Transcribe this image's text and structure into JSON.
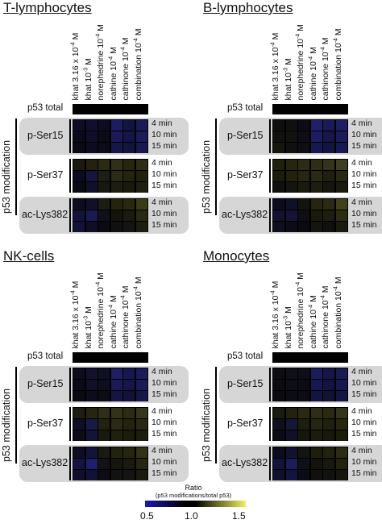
{
  "panels": [
    {
      "title": "T-lymphocytes",
      "heat": {
        "ser15": [
          [
            "#0d0d2a",
            "#10102e",
            "#0c0c22",
            "#1c1c60",
            "#141440",
            "#1a1a58"
          ],
          [
            "#0a0a1c",
            "#0e0e28",
            "#0a0a18",
            "#1a1a56",
            "#151546",
            "#1b1b5a"
          ],
          [
            "#0a0a16",
            "#0c0c20",
            "#0b0b1a",
            "#161648",
            "#141440",
            "#181850"
          ]
        ],
        "ser37": [
          [
            "#1a1a10",
            "#22220e",
            "#2a2a12",
            "#30301a",
            "#26260e",
            "#2e2e18"
          ],
          [
            "#0c0c20",
            "#16163c",
            "#1e1e14",
            "#2a2a16",
            "#24240e",
            "#22220c"
          ],
          [
            "#0a0a14",
            "#10102a",
            "#18180e",
            "#1e1e10",
            "#1a1a0c",
            "#202010"
          ]
        ],
        "lys382": [
          [
            "#0c0c20",
            "#10102a",
            "#1c1c12",
            "#24240e",
            "#28280e",
            "#3a3a18"
          ],
          [
            "#14143a",
            "#1a1a50",
            "#101018",
            "#14140c",
            "#1a1a10",
            "#2a2a14"
          ],
          [
            "#12123a",
            "#0e0e24",
            "#0a0a12",
            "#101010",
            "#141410",
            "#1e1e10"
          ]
        ]
      }
    },
    {
      "title": "B-lymphocytes",
      "heat": {
        "ser15": [
          [
            "#0e0e0e",
            "#101010",
            "#0c0c14",
            "#20206a",
            "#1a1a56",
            "#1e1e62"
          ],
          [
            "#12120c",
            "#121210",
            "#0e0e16",
            "#1c1c60",
            "#161648",
            "#1c1c5a"
          ],
          [
            "#16160c",
            "#101010",
            "#0e0e14",
            "#181850",
            "#141440",
            "#181852"
          ]
        ],
        "ser37": [
          [
            "#20200c",
            "#26260e",
            "#2c2c14",
            "#2e2e16",
            "#34341a",
            "#3e3e20"
          ],
          [
            "#1c1c0c",
            "#22220c",
            "#262612",
            "#2a2a14",
            "#20200e",
            "#2a2a12"
          ],
          [
            "#10100c",
            "#141410",
            "#1a1a0e",
            "#1e1e10",
            "#16160c",
            "#1a1a0e"
          ]
        ],
        "lys382": [
          [
            "#0c0c20",
            "#101028",
            "#14140e",
            "#26260e",
            "#2a2a12",
            "#40401c"
          ],
          [
            "#12122e",
            "#141436",
            "#0e0e14",
            "#1a1a0c",
            "#1e1e10",
            "#2c2c14"
          ],
          [
            "#0e0e1e",
            "#0c0c18",
            "#0a0a10",
            "#141410",
            "#10100e",
            "#1a1a10"
          ]
        ]
      }
    },
    {
      "title": "NK-cells",
      "heat": {
        "ser15": [
          [
            "#0c0c1c",
            "#12122e",
            "#101024",
            "#1e1e60",
            "#181850",
            "#1c1c5c"
          ],
          [
            "#0a0a18",
            "#101028",
            "#0e0e1e",
            "#1a1a56",
            "#161648",
            "#1a1a56"
          ],
          [
            "#0a0a12",
            "#0c0c1c",
            "#0c0c16",
            "#151544",
            "#121238",
            "#16164a"
          ]
        ],
        "ser37": [
          [
            "#1e1e10",
            "#26260e",
            "#2e2e16",
            "#32321a",
            "#2c2c14",
            "#363618"
          ],
          [
            "#0e0e24",
            "#1a1a48",
            "#222212",
            "#2a2a16",
            "#24240e",
            "#2a2a12"
          ],
          [
            "#0c0c18",
            "#141436",
            "#1a1a0e",
            "#20200e",
            "#1c1c0c",
            "#1e1e0e"
          ]
        ],
        "lys382": [
          [
            "#0e0e22",
            "#14143a",
            "#1a1a10",
            "#22220e",
            "#26260e",
            "#323216"
          ],
          [
            "#141440",
            "#20206a",
            "#121218",
            "#16160c",
            "#1a1a10",
            "#262612"
          ],
          [
            "#10102e",
            "#121234",
            "#0c0c12",
            "#121210",
            "#141410",
            "#1a1a0e"
          ]
        ]
      }
    },
    {
      "title": "Monocytes",
      "heat": {
        "ser15": [
          [
            "#0e0e12",
            "#10101a",
            "#0e0e16",
            "#1c1c5a",
            "#161648",
            "#1a1a52"
          ],
          [
            "#0c0c12",
            "#0e0e18",
            "#0c0c14",
            "#181850",
            "#141440",
            "#18184e"
          ],
          [
            "#0c0c10",
            "#0c0c14",
            "#0c0c12",
            "#141440",
            "#121234",
            "#151544"
          ]
        ],
        "ser37": [
          [
            "#1c1c0e",
            "#22220e",
            "#2a2a12",
            "#2e2e16",
            "#2a2a12",
            "#34341a"
          ],
          [
            "#10101c",
            "#161636",
            "#1e1e10",
            "#262612",
            "#20200e",
            "#26260e"
          ],
          [
            "#0c0c14",
            "#10102a",
            "#16160c",
            "#1c1c0e",
            "#18180c",
            "#1c1c0e"
          ]
        ],
        "lys382": [
          [
            "#0c0c1c",
            "#12122e",
            "#14140e",
            "#1e1e0c",
            "#22220e",
            "#2c2c14"
          ],
          [
            "#141438",
            "#1c1c58",
            "#10101a",
            "#14140c",
            "#18180e",
            "#222210"
          ],
          [
            "#10102c",
            "#141440",
            "#0c0c14",
            "#10100e",
            "#121210",
            "#16160e"
          ]
        ]
      }
    }
  ],
  "conditions": [
    {
      "base": "khat 3.16 x 10",
      "exp": "-4",
      "unit": " M"
    },
    {
      "base": "khat 10",
      "exp": "-3",
      "unit": " M"
    },
    {
      "base": "norephedrine 10",
      "exp": "-4",
      "unit": " M"
    },
    {
      "base": "cathine 10",
      "exp": "-4",
      "unit": " M"
    },
    {
      "base": "cathinone 10",
      "exp": "-4",
      "unit": " M"
    },
    {
      "base": "combination 10",
      "exp": "-4",
      "unit": " M"
    }
  ],
  "labels": {
    "p53_total": "p53 total",
    "p53_modification": "p53 modification",
    "ser15": "p-Ser15",
    "ser37": "p-Ser37",
    "lys382": "ac-Lys382",
    "times": [
      "4 min",
      "10 min",
      "15 min"
    ]
  },
  "colorbar": {
    "title": "Ratio",
    "subtitle": "(p53 modifications/total p53)",
    "ticks": [
      "0.5",
      "1.0",
      "1.5"
    ],
    "color_low": "#1a1ab0",
    "color_mid": "#000000",
    "color_high": "#f0f060"
  }
}
